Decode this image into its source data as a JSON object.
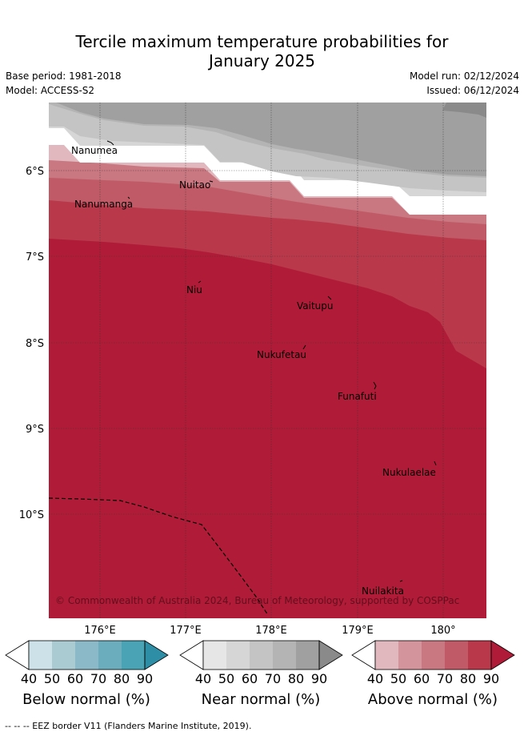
{
  "title_line1": "Tercile maximum temperature probabilities for",
  "title_line2": "January 2025",
  "base_period": "Base period: 1981-2018",
  "model": "Model: ACCESS-S2",
  "model_run": "Model run: 02/12/2024",
  "issued": "Issued: 06/12/2024",
  "x_ticks": [
    "176°E",
    "177°E",
    "178°E",
    "179°E",
    "180°"
  ],
  "y_ticks": [
    "6°S",
    "7°S",
    "8°S",
    "9°S",
    "10°S"
  ],
  "places": [
    "Nanumea",
    "Nuitao",
    "Nanumanga",
    "Niu",
    "Vaitupu",
    "Nukufetau",
    "Funafuti",
    "Nukulaelae",
    "Nuilakita"
  ],
  "copyright": "© Commonwealth of Australia 2024, Bureau of Meteorology, supported by COSPPac",
  "colorbars": [
    {
      "label": "Below normal (%)",
      "ticks": [
        "40",
        "50",
        "60",
        "70",
        "80",
        "90"
      ],
      "colors": [
        "#ffffff",
        "#cde2e8",
        "#aacbd2",
        "#8bb9c7",
        "#6badbd",
        "#4aa3b5",
        "#2e8ea6"
      ]
    },
    {
      "label": "Near normal (%)",
      "ticks": [
        "40",
        "50",
        "60",
        "70",
        "80",
        "90"
      ],
      "colors": [
        "#ffffff",
        "#e6e6e6",
        "#d6d6d6",
        "#c4c4c4",
        "#b4b4b4",
        "#a0a0a0",
        "#8a8a8a"
      ]
    },
    {
      "label": "Above normal (%)",
      "ticks": [
        "40",
        "50",
        "60",
        "70",
        "80",
        "90"
      ],
      "colors": [
        "#ffffff",
        "#e0b8be",
        "#d4949c",
        "#c97780",
        "#c05a66",
        "#b9394b",
        "#b01c38"
      ]
    }
  ],
  "footer": "--  --  -- EEZ border V11 (Flanders Marine Institute, 2019)."
}
